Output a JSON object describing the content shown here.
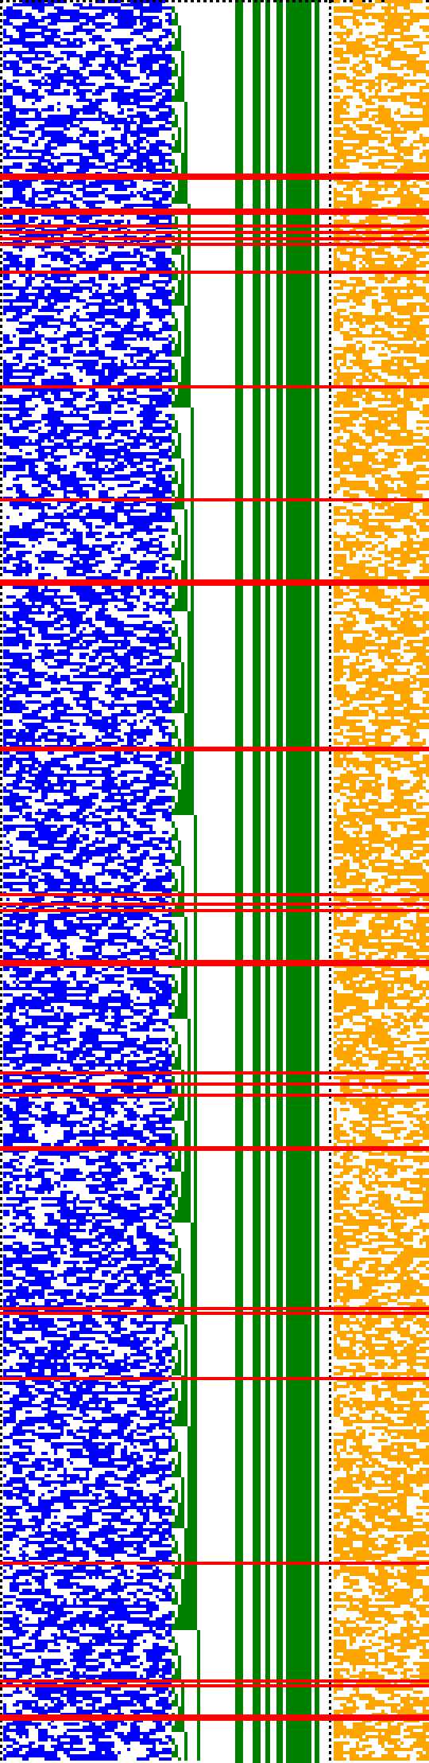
{
  "colors": {
    "background": "#ffffff",
    "counter_bits": "#0000ff",
    "carry_staircase": "#008000",
    "fixed_columns": "#008000",
    "output_bits": "#ffa500",
    "marker_rows": "#ff0000",
    "separator_dots": "#000000"
  },
  "pattern": {
    "kind": "bitwise-visualization",
    "regions": [
      "counter-bits",
      "carry-staircase",
      "constant-columns",
      "separator",
      "output-bits"
    ],
    "highlighted_row_count": 33
  }
}
